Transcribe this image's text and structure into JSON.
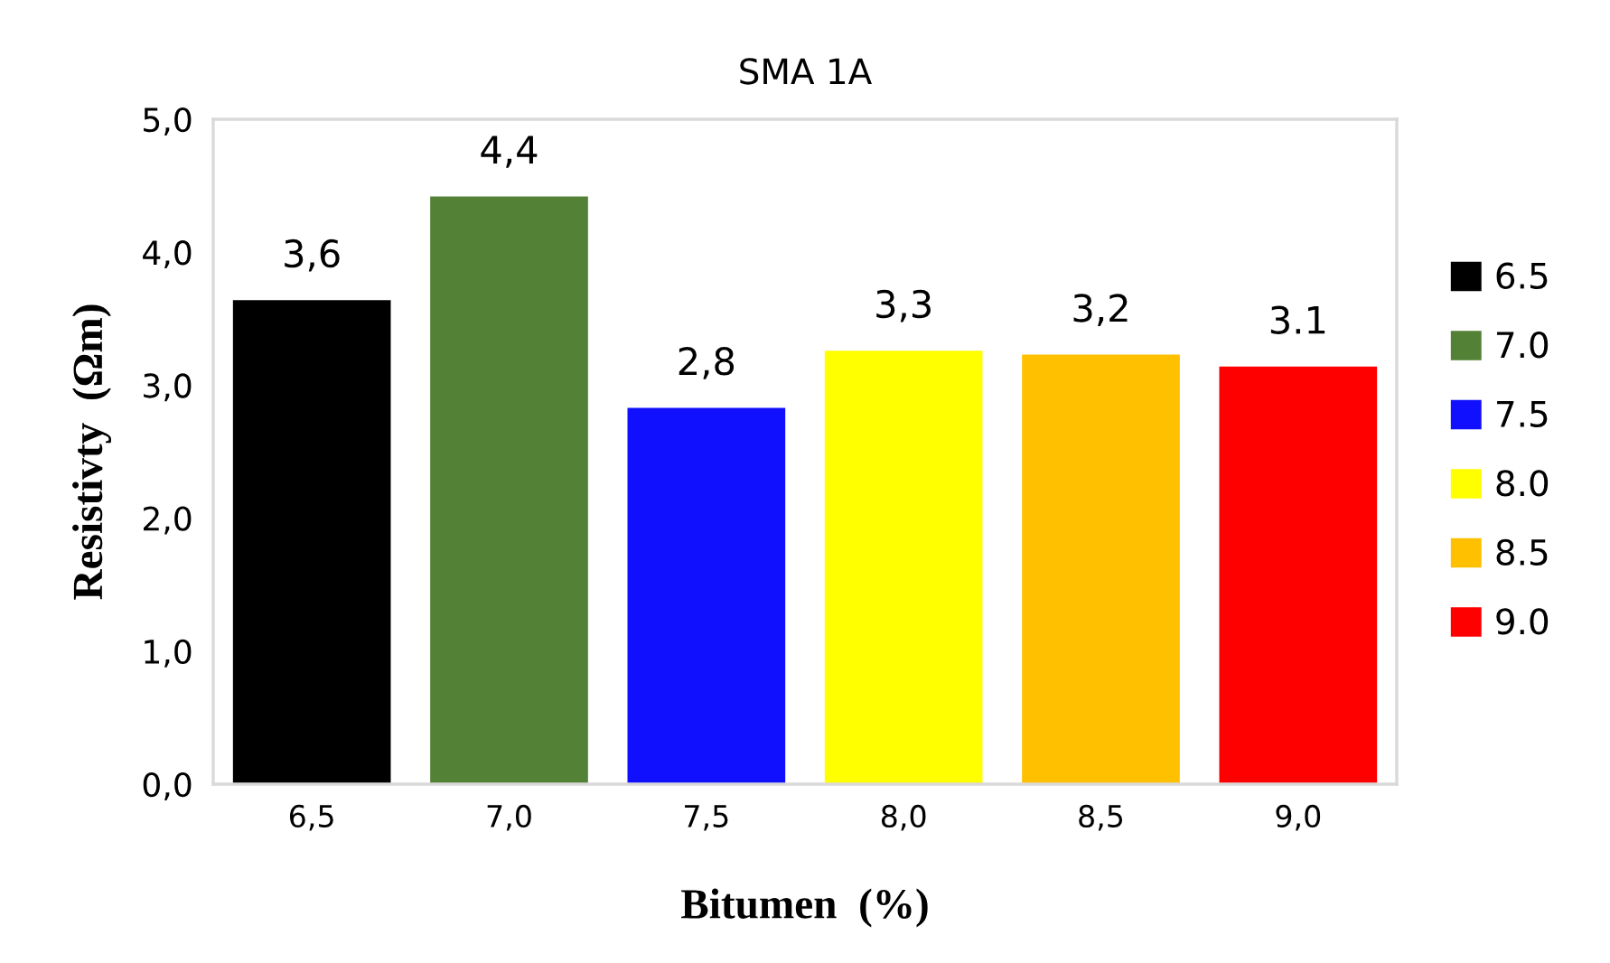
{
  "chart_data": {
    "type": "bar",
    "title": "SMA 1A",
    "xlabel": "Bitumen  (%)",
    "ylabel": "Resistivty  (Ωm)",
    "categories": [
      "6,5",
      "7,0",
      "7,5",
      "8,0",
      "8,5",
      "9,0"
    ],
    "series": [
      {
        "name": "6.5",
        "color": "#000000",
        "values": [
          3.64,
          null,
          null,
          null,
          null,
          null
        ],
        "value_labels": [
          "3,6",
          null,
          null,
          null,
          null,
          null
        ]
      },
      {
        "name": "7.0",
        "color": "#538135",
        "values": [
          null,
          4.42,
          null,
          null,
          null,
          null
        ],
        "value_labels": [
          null,
          "4,4",
          null,
          null,
          null,
          null
        ]
      },
      {
        "name": "7.5",
        "color": "#1010ff",
        "values": [
          null,
          null,
          2.83,
          null,
          null,
          null
        ],
        "value_labels": [
          null,
          null,
          "2,8",
          null,
          null,
          null
        ]
      },
      {
        "name": "8.0",
        "color": "#ffff00",
        "values": [
          null,
          null,
          null,
          3.26,
          null,
          null
        ],
        "value_labels": [
          null,
          null,
          null,
          "3,3",
          null,
          null
        ]
      },
      {
        "name": "8.5",
        "color": "#ffc000",
        "values": [
          null,
          null,
          null,
          null,
          3.23,
          null
        ],
        "value_labels": [
          null,
          null,
          null,
          null,
          "3,2",
          null
        ]
      },
      {
        "name": "9.0",
        "color": "#ff0000",
        "values": [
          null,
          null,
          null,
          null,
          null,
          3.14
        ],
        "value_labels": [
          null,
          null,
          null,
          null,
          null,
          "3.1"
        ]
      }
    ],
    "ylim": [
      0,
      5
    ],
    "yticks": [
      {
        "value": 0,
        "label": "0,0"
      },
      {
        "value": 1,
        "label": "1,0"
      },
      {
        "value": 2,
        "label": "2,0"
      },
      {
        "value": 3,
        "label": "3,0"
      },
      {
        "value": 4,
        "label": "4,0"
      },
      {
        "value": 5,
        "label": "5,0"
      }
    ],
    "grid": false,
    "legend": "right"
  }
}
